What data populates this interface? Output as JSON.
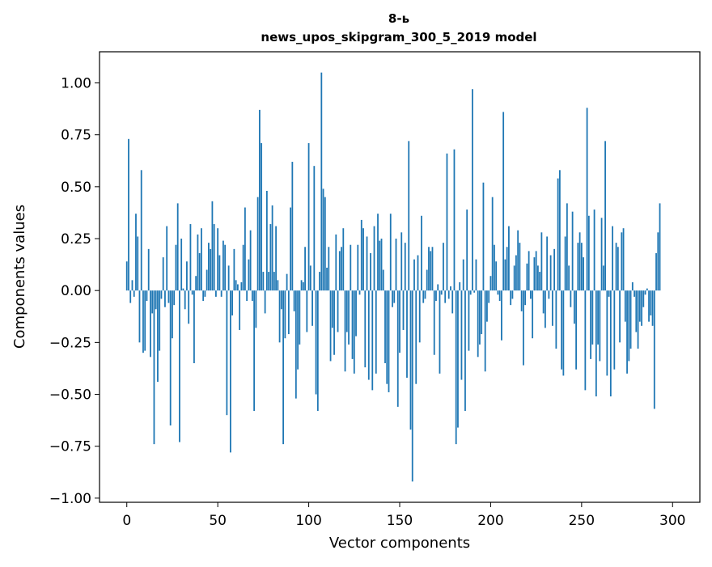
{
  "chart_data": {
    "type": "bar",
    "title_line1": "8-ь",
    "title_line2": "news_upos_skipgram_300_5_2019 model",
    "xlabel": "Vector components",
    "ylabel": "Components values",
    "xlim": [
      -15,
      315
    ],
    "ylim": [
      -1.02,
      1.15
    ],
    "xticks": [
      0,
      50,
      100,
      150,
      200,
      250,
      300
    ],
    "xtick_labels": [
      "0",
      "50",
      "100",
      "150",
      "200",
      "250",
      "300"
    ],
    "yticks": [
      -1.0,
      -0.75,
      -0.5,
      -0.25,
      0.0,
      0.25,
      0.5,
      0.75,
      1.0
    ],
    "ytick_labels": [
      "−1.00",
      "−0.75",
      "−0.50",
      "−0.25",
      "0.00",
      "0.25",
      "0.50",
      "0.75",
      "1.00"
    ],
    "bar_color": "#1f77b4",
    "values": [
      0.14,
      0.73,
      -0.06,
      0.05,
      -0.03,
      0.37,
      0.26,
      -0.25,
      0.58,
      -0.3,
      -0.29,
      -0.05,
      0.2,
      -0.32,
      -0.11,
      -0.74,
      -0.09,
      -0.44,
      -0.29,
      -0.04,
      0.16,
      -0.08,
      0.31,
      -0.06,
      -0.65,
      -0.23,
      -0.07,
      0.22,
      0.42,
      -0.73,
      0.25,
      0.01,
      -0.09,
      0.14,
      -0.16,
      0.32,
      -0.02,
      -0.35,
      0.07,
      0.27,
      0.18,
      0.3,
      -0.05,
      -0.03,
      0.1,
      0.23,
      0.2,
      0.43,
      0.32,
      -0.03,
      0.3,
      0.17,
      -0.03,
      0.24,
      0.22,
      -0.6,
      0.12,
      -0.78,
      -0.12,
      0.2,
      0.05,
      0.03,
      -0.19,
      0.04,
      0.22,
      0.4,
      -0.05,
      0.15,
      0.29,
      -0.05,
      -0.58,
      -0.18,
      0.45,
      0.87,
      0.71,
      0.09,
      -0.11,
      0.48,
      0.09,
      0.32,
      0.41,
      0.09,
      0.31,
      0.05,
      -0.25,
      -0.09,
      -0.74,
      -0.23,
      0.08,
      -0.21,
      0.4,
      0.62,
      -0.1,
      -0.52,
      -0.38,
      -0.26,
      0.05,
      0.04,
      0.21,
      -0.2,
      0.71,
      0.12,
      -0.17,
      0.6,
      -0.5,
      -0.58,
      0.09,
      1.05,
      0.49,
      0.45,
      0.11,
      0.21,
      -0.34,
      -0.18,
      -0.31,
      0.27,
      -0.2,
      0.19,
      0.21,
      0.3,
      -0.39,
      -0.2,
      -0.26,
      0.22,
      -0.33,
      -0.4,
      -0.22,
      0.22,
      -0.02,
      0.34,
      0.3,
      -0.37,
      0.26,
      -0.43,
      0.18,
      -0.48,
      0.31,
      -0.4,
      0.37,
      0.24,
      0.25,
      0.1,
      -0.35,
      -0.45,
      -0.49,
      0.37,
      -0.08,
      -0.06,
      0.25,
      -0.56,
      -0.3,
      0.28,
      -0.19,
      0.23,
      -0.42,
      0.72,
      -0.67,
      -0.92,
      0.15,
      -0.45,
      0.17,
      -0.25,
      0.36,
      -0.06,
      -0.04,
      0.1,
      0.21,
      0.19,
      0.21,
      -0.31,
      -0.05,
      0.03,
      -0.4,
      -0.02,
      0.23,
      -0.06,
      0.66,
      -0.04,
      0.02,
      -0.11,
      0.68,
      -0.74,
      -0.66,
      0.04,
      -0.43,
      0.15,
      -0.58,
      0.39,
      -0.29,
      -0.02,
      0.97,
      -0.01,
      0.15,
      -0.32,
      -0.26,
      -0.21,
      0.52,
      -0.39,
      -0.15,
      -0.06,
      0.07,
      0.45,
      0.22,
      0.14,
      -0.02,
      -0.05,
      -0.24,
      0.86,
      0.15,
      0.21,
      0.31,
      -0.07,
      -0.04,
      0.12,
      0.17,
      0.29,
      0.23,
      -0.1,
      -0.36,
      -0.07,
      0.13,
      0.19,
      -0.04,
      -0.23,
      0.16,
      0.19,
      0.12,
      0.09,
      0.28,
      -0.11,
      -0.18,
      0.26,
      -0.04,
      0.17,
      -0.17,
      0.2,
      -0.28,
      0.54,
      0.58,
      -0.38,
      -0.41,
      0.26,
      0.42,
      0.12,
      -0.08,
      0.38,
      -0.16,
      -0.38,
      0.23,
      0.28,
      0.23,
      0.16,
      -0.48,
      0.88,
      0.36,
      -0.33,
      -0.26,
      0.39,
      -0.51,
      -0.26,
      -0.34,
      0.35,
      0.12,
      0.72,
      -0.41,
      -0.03,
      -0.51,
      0.31,
      -0.38,
      0.23,
      0.21,
      -0.25,
      0.28,
      0.3,
      -0.15,
      -0.4,
      -0.34,
      -0.28,
      0.04,
      -0.03,
      -0.2,
      -0.28,
      -0.15,
      -0.17,
      -0.08,
      -0.02,
      0.01,
      -0.15,
      -0.12,
      -0.17,
      -0.57,
      0.18,
      0.28,
      0.42
    ]
  }
}
